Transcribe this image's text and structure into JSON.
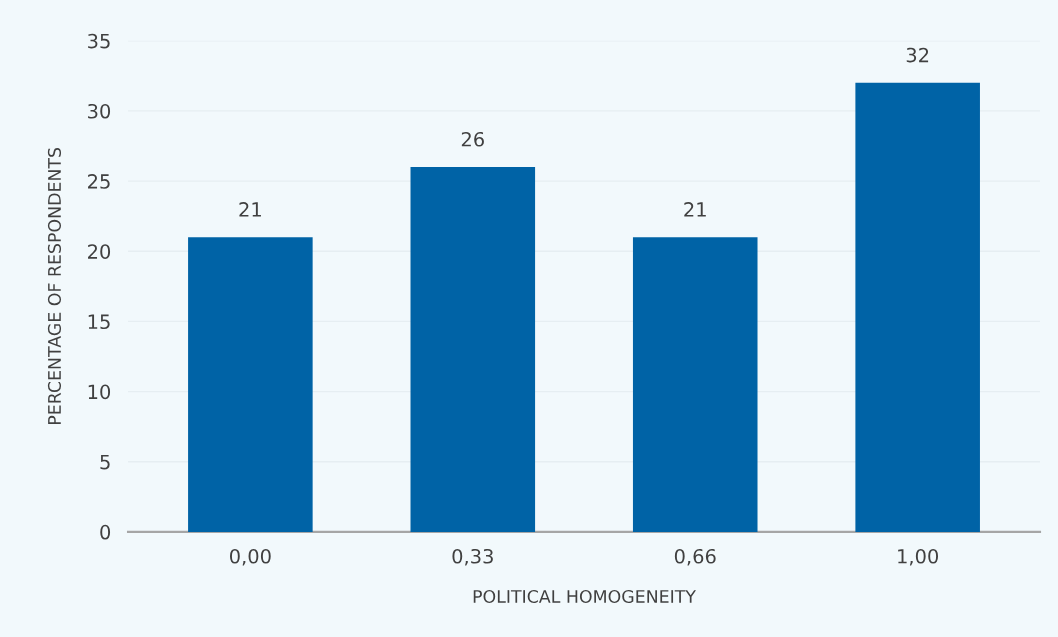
{
  "chart_data": {
    "type": "bar",
    "xlabel": "POLITICAL HOMOGENEITY",
    "ylabel": "PERCENTAGE OF RESPONDENTS",
    "categories": [
      "0,00",
      "0,33",
      "0,66",
      "1,00"
    ],
    "values": [
      21,
      26,
      21,
      32
    ],
    "color": "#0063a6",
    "ylim": [
      0,
      35
    ],
    "yticks": [
      0,
      5,
      10,
      15,
      20,
      25,
      30,
      35
    ],
    "grid": "y",
    "data_labels": true
  }
}
